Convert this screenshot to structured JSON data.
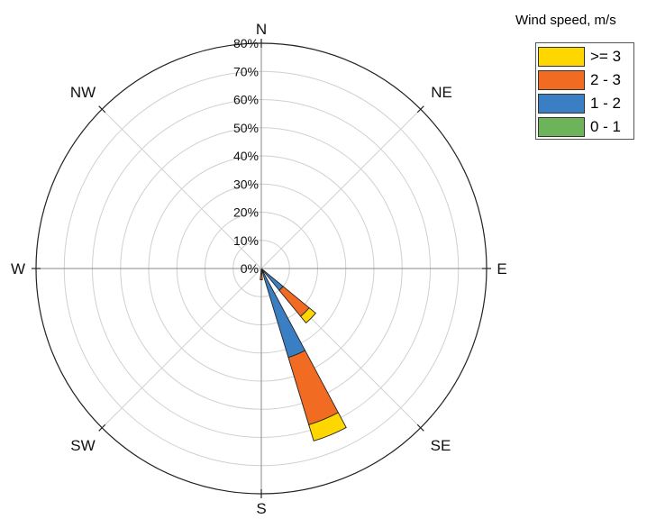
{
  "chart_data": {
    "type": "windrose",
    "radial_axis": {
      "unit": "%",
      "ticks": [
        "0%",
        "10%",
        "20%",
        "30%",
        "40%",
        "50%",
        "60%",
        "70%",
        "80%"
      ],
      "max": 80
    },
    "directions": [
      "N",
      "NE",
      "E",
      "SE",
      "S",
      "SW",
      "W",
      "NW"
    ],
    "legend": {
      "title": "Wind speed, m/s",
      "entries": [
        {
          "label": ">= 3",
          "color": "#FFD700"
        },
        {
          "label": "2 - 3",
          "color": "#F26B22"
        },
        {
          "label": "1 - 2",
          "color": "#3A7FC4"
        },
        {
          "label": "0 - 1",
          "color": "#6DB35A"
        }
      ]
    },
    "sectors": [
      {
        "bearing_deg": 135,
        "stack": [
          {
            "bin": "0 - 1",
            "value": 0
          },
          {
            "bin": "1 - 2",
            "value": 10
          },
          {
            "bin": "2 - 3",
            "value": 12
          },
          {
            "bin": "3+",
            "value": 3
          }
        ]
      },
      {
        "bearing_deg": 157.5,
        "stack": [
          {
            "bin": "0 - 1",
            "value": 0
          },
          {
            "bin": "1 - 2",
            "value": 33
          },
          {
            "bin": "2 - 3",
            "value": 25
          },
          {
            "bin": "3+",
            "value": 6
          }
        ]
      },
      {
        "bearing_deg": 180,
        "stack": [
          {
            "bin": "0 - 1",
            "value": 0
          },
          {
            "bin": "1 - 2",
            "value": 1
          },
          {
            "bin": "2 - 3",
            "value": 3
          },
          {
            "bin": "3+",
            "value": 0
          }
        ]
      }
    ]
  }
}
